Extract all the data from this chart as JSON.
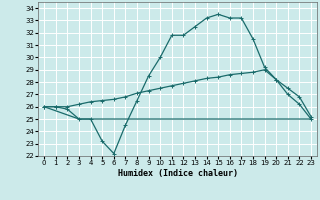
{
  "title": "",
  "xlabel": "Humidex (Indice chaleur)",
  "ylabel": "",
  "bg_color": "#cceaea",
  "grid_color": "#ffffff",
  "line_color": "#1a6b6b",
  "ylim": [
    22,
    34.5
  ],
  "xlim": [
    -0.5,
    23.5
  ],
  "yticks": [
    22,
    23,
    24,
    25,
    26,
    27,
    28,
    29,
    30,
    31,
    32,
    33,
    34
  ],
  "xticks": [
    0,
    1,
    2,
    3,
    4,
    5,
    6,
    7,
    8,
    9,
    10,
    11,
    12,
    13,
    14,
    15,
    16,
    17,
    18,
    19,
    20,
    21,
    22,
    23
  ],
  "series1_x": [
    0,
    1,
    2,
    3,
    4,
    5,
    6,
    7,
    8,
    9,
    10,
    11,
    12,
    13,
    14,
    15,
    16,
    17,
    18,
    19,
    20,
    21,
    22,
    23
  ],
  "series1_y": [
    26.0,
    26.0,
    25.8,
    25.0,
    25.0,
    23.2,
    22.2,
    24.5,
    26.5,
    28.5,
    30.0,
    31.8,
    31.8,
    32.5,
    33.2,
    33.5,
    33.2,
    33.2,
    31.5,
    29.2,
    28.2,
    27.0,
    26.2,
    25.0
  ],
  "series2_x": [
    0,
    1,
    2,
    3,
    4,
    5,
    6,
    7,
    8,
    9,
    10,
    11,
    12,
    13,
    14,
    15,
    16,
    17,
    18,
    19,
    20,
    21,
    22,
    23
  ],
  "series2_y": [
    26.0,
    26.0,
    26.0,
    26.2,
    26.4,
    26.5,
    26.6,
    26.8,
    27.1,
    27.3,
    27.5,
    27.7,
    27.9,
    28.1,
    28.3,
    28.4,
    28.6,
    28.7,
    28.8,
    29.0,
    28.2,
    27.5,
    26.8,
    25.2
  ],
  "series3_x": [
    0,
    3,
    23
  ],
  "series3_y": [
    26.0,
    25.0,
    25.0
  ]
}
